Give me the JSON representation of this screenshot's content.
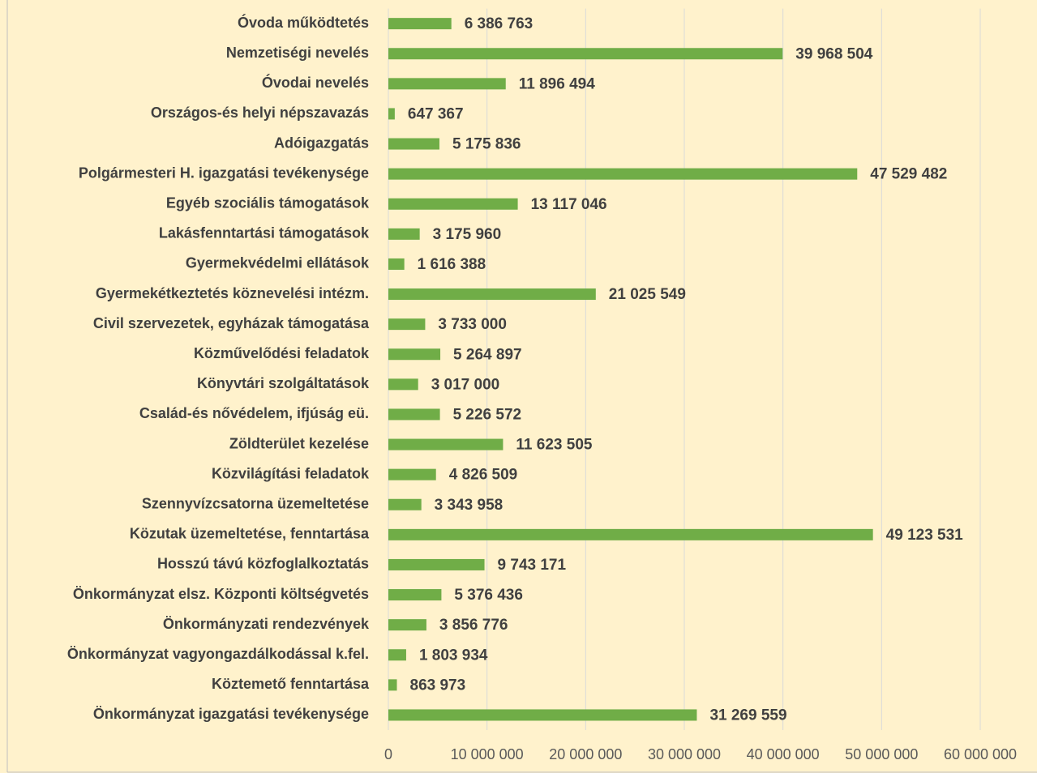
{
  "chart_data": {
    "type": "bar",
    "orientation": "horizontal",
    "color": "#70ad47",
    "grid": true,
    "categories": [
      "Óvoda működtetés",
      "Nemzetiségi nevelés",
      "Óvodai nevelés",
      "Országos-és helyi népszavazás",
      "Adóigazgatás",
      "Polgármesteri H. igazgatási tevékenysége",
      "Egyéb szociális támogatások",
      "Lakásfenntartási támogatások",
      "Gyermekvédelmi ellátások",
      "Gyermekétkeztetés köznevelési intézm.",
      "Civil szervezetek, egyházak támogatása",
      "Közművelődési feladatok",
      "Könyvtári szolgáltatások",
      "Család-és nővédelem, ifjúság eü.",
      "Zöldterület kezelése",
      "Közvilágítási feladatok",
      "Szennyvízcsatorna üzemeltetése",
      "Közutak üzemeltetése, fenntartása",
      "Hosszú távú közfoglalkoztatás",
      "Önkormányzat elsz. Központi költségvetés",
      "Önkormányzati rendezvények",
      "Önkormányzat vagyongazdálkodással k.fel.",
      "Köztemető fenntartása",
      "Önkormányzat igazgatási tevékenysége"
    ],
    "values": [
      6386763,
      39968504,
      11896494,
      647367,
      5175836,
      47529482,
      13117046,
      3175960,
      1616388,
      21025549,
      3733000,
      5264897,
      3017000,
      5226572,
      11623505,
      4826509,
      3343958,
      49123531,
      9743171,
      5376436,
      3856776,
      1803934,
      863973,
      31269559
    ],
    "value_labels": [
      "6 386 763",
      "39 968 504",
      "11 896 494",
      "647 367",
      "5 175 836",
      "47 529 482",
      "13 117 046",
      "3 175 960",
      "1 616 388",
      "21 025 549",
      "3 733 000",
      "5 264 897",
      "3 017 000",
      "5 226 572",
      "11 623 505",
      "4 826 509",
      "3 343 958",
      "49 123 531",
      "9 743 171",
      "5 376 436",
      "3 856 776",
      "1 803 934",
      "863 973",
      "31 269 559"
    ],
    "xlim": [
      0,
      60000000
    ],
    "xticks": [
      0,
      {
        "value": 10000000,
        "label": "10 000 000"
      },
      {
        "value": 20000000,
        "label": "20 000 000"
      },
      {
        "value": 30000000,
        "label": "30 000 000"
      },
      {
        "value": 40000000,
        "label": "40 000 000"
      },
      {
        "value": 50000000,
        "label": "50 000 000"
      },
      {
        "value": 60000000,
        "label": "60 000 000"
      }
    ]
  }
}
